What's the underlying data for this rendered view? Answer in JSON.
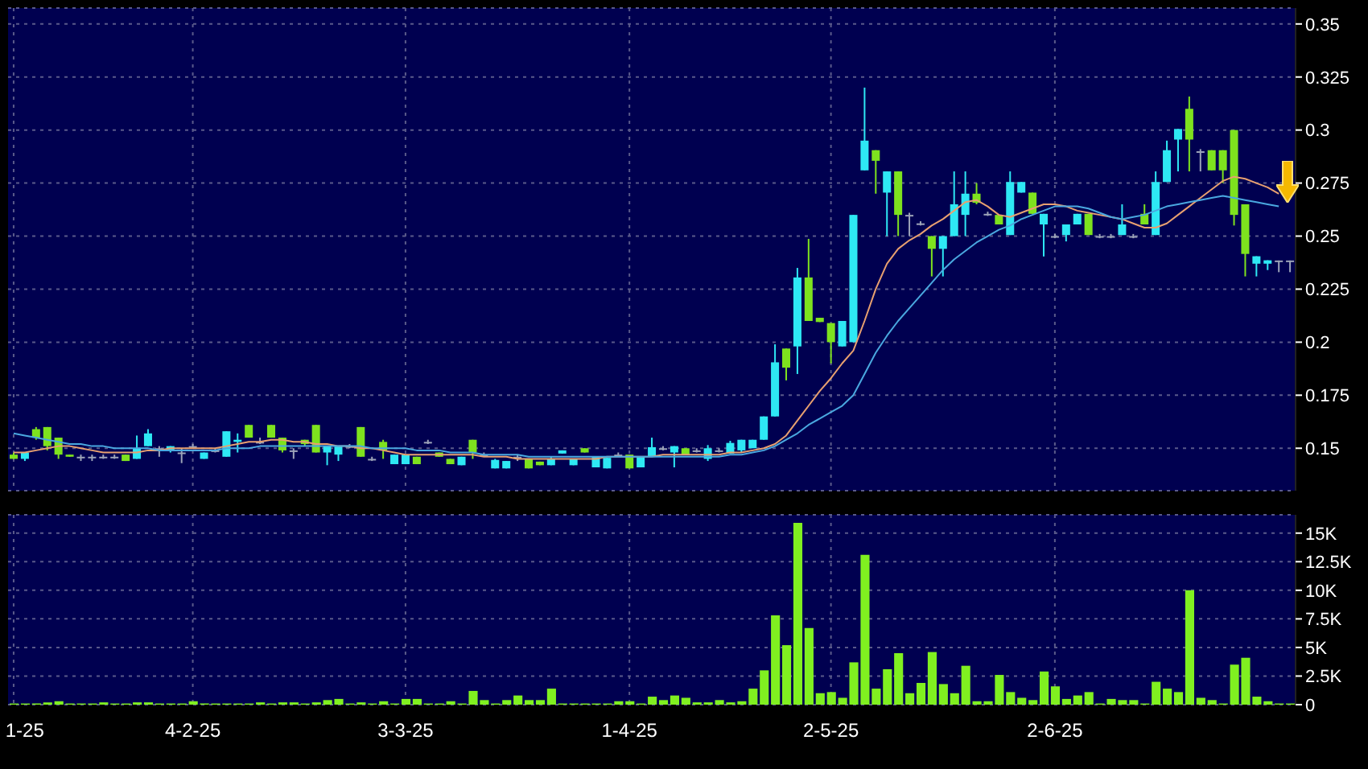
{
  "chart_data": [
    {
      "type": "candlestick",
      "categories": [
        null,
        null,
        null,
        null,
        null,
        null,
        null,
        null,
        null,
        null,
        null,
        null,
        null,
        null,
        null,
        null,
        null,
        null,
        null,
        null,
        null,
        null,
        null,
        null,
        null,
        null,
        null,
        null,
        null,
        null,
        null,
        null,
        null,
        null,
        null,
        null,
        null,
        null,
        null,
        null,
        null,
        null,
        null,
        null,
        null,
        null,
        null,
        null,
        null,
        null,
        null,
        null,
        null,
        null,
        null,
        null,
        null,
        null,
        null,
        null,
        null,
        null,
        null,
        null,
        null,
        null,
        null,
        null,
        null,
        null,
        null,
        null,
        null,
        null,
        null,
        null,
        null,
        null,
        null,
        null,
        null,
        null,
        null,
        null,
        null,
        null,
        null,
        null,
        null,
        null,
        null,
        null,
        null,
        null,
        null,
        null,
        null,
        null,
        null,
        null,
        null,
        null,
        null,
        null,
        null,
        null,
        null,
        null,
        null,
        null,
        null,
        null,
        null,
        null,
        null
      ],
      "ohlc": [
        [
          0.147,
          0.148,
          0.145,
          0.145
        ],
        [
          0.145,
          0.148,
          0.144,
          0.148
        ],
        [
          0.159,
          0.16,
          0.154,
          0.155
        ],
        [
          0.16,
          0.16,
          0.149,
          0.151
        ],
        [
          0.155,
          0.155,
          0.145,
          0.147
        ],
        [
          0.147,
          0.147,
          0.146,
          0.146
        ],
        [
          0.146,
          0.147,
          0.144,
          0.146
        ],
        [
          0.146,
          0.147,
          0.144,
          0.146
        ],
        [
          0.146,
          0.147,
          0.145,
          0.146
        ],
        [
          0.146,
          0.147,
          0.145,
          0.146
        ],
        [
          0.147,
          0.147,
          0.144,
          0.144
        ],
        [
          0.145,
          0.156,
          0.145,
          0.15
        ],
        [
          0.151,
          0.159,
          0.151,
          0.157
        ],
        [
          0.15,
          0.151,
          0.146,
          0.15
        ],
        [
          0.149,
          0.151,
          0.148,
          0.151
        ],
        [
          0.148,
          0.15,
          0.143,
          0.148
        ],
        [
          0.151,
          0.152,
          0.15,
          0.151
        ],
        [
          0.145,
          0.148,
          0.145,
          0.148
        ],
        [
          0.149,
          0.15,
          0.148,
          0.149
        ],
        [
          0.146,
          0.158,
          0.146,
          0.158
        ],
        [
          0.153,
          0.157,
          0.148,
          0.154
        ],
        [
          0.161,
          0.161,
          0.155,
          0.155
        ],
        [
          0.153,
          0.155,
          0.152,
          0.153
        ],
        [
          0.161,
          0.161,
          0.155,
          0.155
        ],
        [
          0.155,
          0.155,
          0.148,
          0.149
        ],
        [
          0.149,
          0.15,
          0.145,
          0.149
        ],
        [
          0.154,
          0.154,
          0.151,
          0.152
        ],
        [
          0.161,
          0.161,
          0.148,
          0.148
        ],
        [
          0.148,
          0.151,
          0.142,
          0.151
        ],
        [
          0.147,
          0.151,
          0.144,
          0.151
        ],
        [
          0.151,
          0.152,
          0.15,
          0.151
        ],
        [
          0.16,
          0.16,
          0.146,
          0.146
        ],
        [
          0.145,
          0.146,
          0.144,
          0.145
        ],
        [
          0.153,
          0.154,
          0.145,
          0.149
        ],
        [
          0.1425,
          0.147,
          0.1425,
          0.147
        ],
        [
          0.1425,
          0.147,
          0.1425,
          0.147
        ],
        [
          0.146,
          0.146,
          0.1425,
          0.1425
        ],
        [
          0.153,
          0.154,
          0.152,
          0.153
        ],
        [
          0.148,
          0.148,
          0.146,
          0.146
        ],
        [
          0.145,
          0.145,
          0.1425,
          0.1425
        ],
        [
          0.142,
          0.146,
          0.142,
          0.146
        ],
        [
          0.154,
          0.154,
          0.145,
          0.148
        ],
        [
          0.147,
          0.148,
          0.146,
          0.147
        ],
        [
          0.1405,
          0.145,
          0.1405,
          0.1445
        ],
        [
          0.1405,
          0.144,
          0.1405,
          0.144
        ],
        [
          0.146,
          0.147,
          0.144,
          0.146
        ],
        [
          0.145,
          0.145,
          0.1405,
          0.1405
        ],
        [
          0.1437,
          0.1437,
          0.142,
          0.142
        ],
        [
          0.142,
          0.146,
          0.142,
          0.145
        ],
        [
          0.1475,
          0.149,
          0.1475,
          0.149
        ],
        [
          0.142,
          0.145,
          0.142,
          0.145
        ],
        [
          0.15,
          0.15,
          0.148,
          0.148
        ],
        [
          0.141,
          0.146,
          0.141,
          0.146
        ],
        [
          0.1405,
          0.1455,
          0.1405,
          0.1455
        ],
        [
          0.147,
          0.148,
          0.146,
          0.147
        ],
        [
          0.147,
          0.147,
          0.1405,
          0.1405
        ],
        [
          0.141,
          0.146,
          0.141,
          0.146
        ],
        [
          0.146,
          0.155,
          0.146,
          0.1505
        ],
        [
          0.15,
          0.151,
          0.149,
          0.15
        ],
        [
          0.148,
          0.151,
          0.141,
          0.151
        ],
        [
          0.15,
          0.15,
          0.147,
          0.147
        ],
        [
          0.149,
          0.15,
          0.148,
          0.149
        ],
        [
          0.145,
          0.1515,
          0.144,
          0.15
        ],
        [
          0.149,
          0.15,
          0.148,
          0.149
        ],
        [
          0.1475,
          0.1535,
          0.1475,
          0.1525
        ],
        [
          0.149,
          0.154,
          0.148,
          0.154
        ],
        [
          0.15,
          0.154,
          0.15,
          0.154
        ],
        [
          0.154,
          0.165,
          0.154,
          0.165
        ],
        [
          0.165,
          0.199,
          0.165,
          0.1905
        ],
        [
          0.197,
          0.197,
          0.182,
          0.188
        ],
        [
          0.198,
          0.235,
          0.185,
          0.2305
        ],
        [
          0.2305,
          0.2487,
          0.21,
          0.21
        ],
        [
          0.2115,
          0.2115,
          0.2095,
          0.2095
        ],
        [
          0.209,
          0.209,
          0.19,
          0.2
        ],
        [
          0.198,
          0.21,
          0.198,
          0.21
        ],
        [
          0.2,
          0.26,
          0.2,
          0.26
        ],
        [
          0.281,
          0.32,
          0.281,
          0.295
        ],
        [
          0.2905,
          0.2905,
          0.27,
          0.2855
        ],
        [
          0.2705,
          0.2805,
          0.25,
          0.2805
        ],
        [
          0.2805,
          0.2805,
          0.25,
          0.26
        ],
        [
          0.26,
          0.261,
          0.25,
          0.26
        ],
        [
          0.256,
          0.257,
          0.255,
          0.256
        ],
        [
          0.25,
          0.25,
          0.231,
          0.244
        ],
        [
          0.244,
          0.25,
          0.231,
          0.25
        ],
        [
          0.25,
          0.2805,
          0.25,
          0.265
        ],
        [
          0.26,
          0.2805,
          0.25,
          0.27
        ],
        [
          0.27,
          0.275,
          0.265,
          0.2657
        ],
        [
          0.2605,
          0.2615,
          0.2595,
          0.2605
        ],
        [
          0.26,
          0.26,
          0.2555,
          0.2555
        ],
        [
          0.2505,
          0.2805,
          0.2505,
          0.2755
        ],
        [
          0.2705,
          0.2755,
          0.2705,
          0.2755
        ],
        [
          0.2705,
          0.2705,
          0.2605,
          0.2605
        ],
        [
          0.2555,
          0.2605,
          0.2404,
          0.2605
        ],
        [
          0.25,
          0.251,
          0.249,
          0.25
        ],
        [
          0.2505,
          0.2555,
          0.2475,
          0.2555
        ],
        [
          0.2555,
          0.2605,
          0.2555,
          0.2605
        ],
        [
          0.2605,
          0.2605,
          0.2505,
          0.2505
        ],
        [
          0.25,
          0.251,
          0.249,
          0.25
        ],
        [
          0.25,
          0.251,
          0.249,
          0.25
        ],
        [
          0.2505,
          0.265,
          0.2505,
          0.2555
        ],
        [
          0.25,
          0.251,
          0.249,
          0.25
        ],
        [
          0.2605,
          0.265,
          0.2555,
          0.2555
        ],
        [
          0.2505,
          0.2805,
          0.2505,
          0.2755
        ],
        [
          0.2755,
          0.295,
          0.2755,
          0.2905
        ],
        [
          0.2955,
          0.3005,
          0.2805,
          0.3005
        ],
        [
          0.31,
          0.3158,
          0.2805,
          0.2955
        ],
        [
          0.29,
          0.291,
          0.2805,
          0.29
        ],
        [
          0.2905,
          0.2905,
          0.281,
          0.281
        ],
        [
          0.2905,
          0.2905,
          0.275,
          0.281
        ],
        [
          0.3,
          0.3,
          0.255,
          0.26
        ],
        [
          0.265,
          0.265,
          0.231,
          0.2416
        ],
        [
          0.237,
          0.2405,
          0.231,
          0.2405
        ],
        [
          0.237,
          0.2386,
          0.234,
          0.2386
        ],
        [
          0.2385,
          0.2385,
          0.233,
          0.2385
        ],
        [
          0.2385,
          0.2385,
          0.233,
          0.2385
        ]
      ],
      "colors": [
        "#7ee21e",
        "#2ee8f4",
        "#7ee21e",
        "#7ee21e",
        "#7ee21e",
        "#7ee21e",
        "#9ca3b8",
        "#9ca3b8",
        "#9ca3b8",
        "#9ca3b8",
        "#7ee21e",
        "#2ee8f4",
        "#2ee8f4",
        "#9ca3b8",
        "#2ee8f4",
        "#9ca3b8",
        "#9ca3b8",
        "#2ee8f4",
        "#9ca3b8",
        "#2ee8f4",
        "#2ee8f4",
        "#7ee21e",
        "#9ca3b8",
        "#7ee21e",
        "#7ee21e",
        "#9ca3b8",
        "#7ee21e",
        "#7ee21e",
        "#2ee8f4",
        "#2ee8f4",
        "#9ca3b8",
        "#7ee21e",
        "#9ca3b8",
        "#7ee21e",
        "#2ee8f4",
        "#2ee8f4",
        "#7ee21e",
        "#9ca3b8",
        "#7ee21e",
        "#7ee21e",
        "#2ee8f4",
        "#7ee21e",
        "#9ca3b8",
        "#2ee8f4",
        "#2ee8f4",
        "#9ca3b8",
        "#7ee21e",
        "#7ee21e",
        "#2ee8f4",
        "#2ee8f4",
        "#2ee8f4",
        "#7ee21e",
        "#2ee8f4",
        "#2ee8f4",
        "#9ca3b8",
        "#7ee21e",
        "#2ee8f4",
        "#2ee8f4",
        "#9ca3b8",
        "#2ee8f4",
        "#7ee21e",
        "#9ca3b8",
        "#2ee8f4",
        "#9ca3b8",
        "#2ee8f4",
        "#2ee8f4",
        "#2ee8f4",
        "#2ee8f4",
        "#2ee8f4",
        "#7ee21e",
        "#2ee8f4",
        "#7ee21e",
        "#7ee21e",
        "#7ee21e",
        "#2ee8f4",
        "#2ee8f4",
        "#2ee8f4",
        "#7ee21e",
        "#2ee8f4",
        "#7ee21e",
        "#9ca3b8",
        "#9ca3b8",
        "#7ee21e",
        "#2ee8f4",
        "#2ee8f4",
        "#2ee8f4",
        "#7ee21e",
        "#9ca3b8",
        "#7ee21e",
        "#2ee8f4",
        "#2ee8f4",
        "#7ee21e",
        "#2ee8f4",
        "#9ca3b8",
        "#2ee8f4",
        "#2ee8f4",
        "#7ee21e",
        "#9ca3b8",
        "#9ca3b8",
        "#2ee8f4",
        "#9ca3b8",
        "#7ee21e",
        "#2ee8f4",
        "#2ee8f4",
        "#2ee8f4",
        "#7ee21e",
        "#9ca3b8",
        "#7ee21e",
        "#7ee21e",
        "#7ee21e",
        "#7ee21e",
        "#2ee8f4",
        "#2ee8f4",
        "#9ca3b8",
        "#9ca3b8"
      ],
      "series": [
        {
          "type": "line",
          "color": "#e8a070",
          "values": [
            0.148,
            0.148,
            0.149,
            0.15,
            0.151,
            0.151,
            0.15,
            0.149,
            0.148,
            0.148,
            0.148,
            0.148,
            0.149,
            0.149,
            0.15,
            0.15,
            0.15,
            0.15,
            0.15,
            0.151,
            0.152,
            0.153,
            0.153,
            0.154,
            0.154,
            0.153,
            0.153,
            0.152,
            0.152,
            0.151,
            0.151,
            0.15,
            0.15,
            0.149,
            0.148,
            0.147,
            0.147,
            0.147,
            0.147,
            0.147,
            0.147,
            0.147,
            0.146,
            0.146,
            0.146,
            0.145,
            0.145,
            0.145,
            0.145,
            0.145,
            0.145,
            0.145,
            0.145,
            0.146,
            0.146,
            0.146,
            0.146,
            0.146,
            0.147,
            0.147,
            0.147,
            0.147,
            0.147,
            0.147,
            0.148,
            0.148,
            0.149,
            0.15,
            0.152,
            0.156,
            0.163,
            0.17,
            0.177,
            0.183,
            0.19,
            0.196,
            0.21,
            0.225,
            0.237,
            0.244,
            0.248,
            0.251,
            0.255,
            0.258,
            0.262,
            0.266,
            0.267,
            0.264,
            0.26,
            0.259,
            0.261,
            0.263,
            0.265,
            0.265,
            0.264,
            0.262,
            0.261,
            0.26,
            0.259,
            0.258,
            0.256,
            0.254,
            0.254,
            0.256,
            0.26,
            0.264,
            0.268,
            0.272,
            0.276,
            0.278,
            0.277,
            0.275,
            0.273,
            0.27,
            null
          ]
        },
        {
          "type": "line",
          "color": "#4aa8e0",
          "values": [
            0.157,
            0.156,
            0.155,
            0.154,
            0.153,
            0.152,
            0.152,
            0.151,
            0.151,
            0.15,
            0.15,
            0.15,
            0.15,
            0.149,
            0.149,
            0.149,
            0.149,
            0.149,
            0.149,
            0.15,
            0.15,
            0.15,
            0.151,
            0.151,
            0.151,
            0.151,
            0.151,
            0.151,
            0.151,
            0.151,
            0.151,
            0.151,
            0.15,
            0.15,
            0.15,
            0.15,
            0.149,
            0.149,
            0.149,
            0.148,
            0.148,
            0.148,
            0.147,
            0.147,
            0.147,
            0.147,
            0.146,
            0.146,
            0.146,
            0.146,
            0.146,
            0.146,
            0.146,
            0.146,
            0.146,
            0.146,
            0.146,
            0.146,
            0.146,
            0.146,
            0.146,
            0.146,
            0.146,
            0.146,
            0.147,
            0.147,
            0.148,
            0.149,
            0.151,
            0.154,
            0.157,
            0.161,
            0.164,
            0.167,
            0.17,
            0.175,
            0.185,
            0.195,
            0.203,
            0.21,
            0.216,
            0.222,
            0.228,
            0.234,
            0.239,
            0.243,
            0.247,
            0.25,
            0.253,
            0.255,
            0.258,
            0.26,
            0.262,
            0.264,
            0.264,
            0.264,
            0.263,
            0.261,
            0.259,
            0.258,
            0.259,
            0.26,
            0.262,
            0.264,
            0.265,
            0.266,
            0.267,
            0.268,
            0.269,
            0.268,
            0.267,
            0.266,
            0.265,
            0.264,
            null
          ]
        }
      ],
      "ylim": [
        0.13,
        0.3575
      ],
      "yticks": [
        0.15,
        0.175,
        0.2,
        0.225,
        0.25,
        0.275,
        0.3,
        0.325,
        0.35
      ],
      "grid": true,
      "tick_labels": "y"
    },
    {
      "type": "bar",
      "categories": [
        "1-25",
        null,
        null,
        null,
        null,
        null,
        null,
        null,
        null,
        null,
        null,
        null,
        null,
        null,
        null,
        null,
        "4-2-25",
        null,
        null,
        null,
        null,
        null,
        null,
        null,
        null,
        null,
        null,
        null,
        null,
        null,
        null,
        null,
        null,
        null,
        null,
        "3-3-25",
        null,
        null,
        null,
        null,
        null,
        null,
        null,
        null,
        null,
        null,
        null,
        null,
        null,
        null,
        null,
        null,
        null,
        null,
        null,
        "1-4-25",
        null,
        null,
        null,
        null,
        null,
        null,
        null,
        null,
        null,
        null,
        null,
        null,
        null,
        null,
        null,
        null,
        null,
        "2-5-25",
        null,
        null,
        null,
        null,
        null,
        null,
        null,
        null,
        null,
        null,
        null,
        null,
        null,
        null,
        null,
        null,
        null,
        null,
        null,
        "2-6-25",
        null,
        null,
        null,
        null,
        null,
        null,
        null,
        null,
        null,
        null,
        null,
        null,
        null,
        null,
        null,
        null,
        null,
        null,
        null,
        null,
        null
      ],
      "values": [
        100,
        100,
        100,
        200,
        300,
        100,
        100,
        100,
        200,
        100,
        100,
        200,
        200,
        100,
        100,
        100,
        300,
        100,
        100,
        100,
        100,
        100,
        200,
        100,
        200,
        200,
        100,
        200,
        400,
        500,
        100,
        200,
        100,
        300,
        100,
        500,
        500,
        100,
        100,
        300,
        100,
        1200,
        400,
        100,
        400,
        800,
        400,
        400,
        1400,
        100,
        100,
        100,
        100,
        100,
        300,
        300,
        100,
        700,
        400,
        800,
        600,
        200,
        200,
        400,
        200,
        300,
        1400,
        3000,
        7800,
        5200,
        15900,
        6700,
        1000,
        1100,
        600,
        3700,
        13100,
        1400,
        3100,
        4500,
        1000,
        1900,
        4600,
        1800,
        1000,
        3400,
        300,
        300,
        2600,
        1100,
        600,
        400,
        2900,
        1600,
        500,
        800,
        1100,
        100,
        500,
        400,
        400,
        100,
        2000,
        1400,
        1100,
        10000,
        600,
        400,
        100,
        3500,
        4100,
        700,
        300,
        100,
        100
      ],
      "color": "#80f020",
      "ylim": [
        0,
        16600
      ],
      "yticks": [
        {
          "value": 0,
          "label": "0"
        },
        {
          "value": 2500,
          "label": "2.5K"
        },
        {
          "value": 5000,
          "label": "5K"
        },
        {
          "value": 7500,
          "label": "7.5K"
        },
        {
          "value": 10000,
          "label": "10K"
        },
        {
          "value": 12500,
          "label": "12.5K"
        },
        {
          "value": 15000,
          "label": "15K"
        }
      ],
      "grid": true
    }
  ]
}
